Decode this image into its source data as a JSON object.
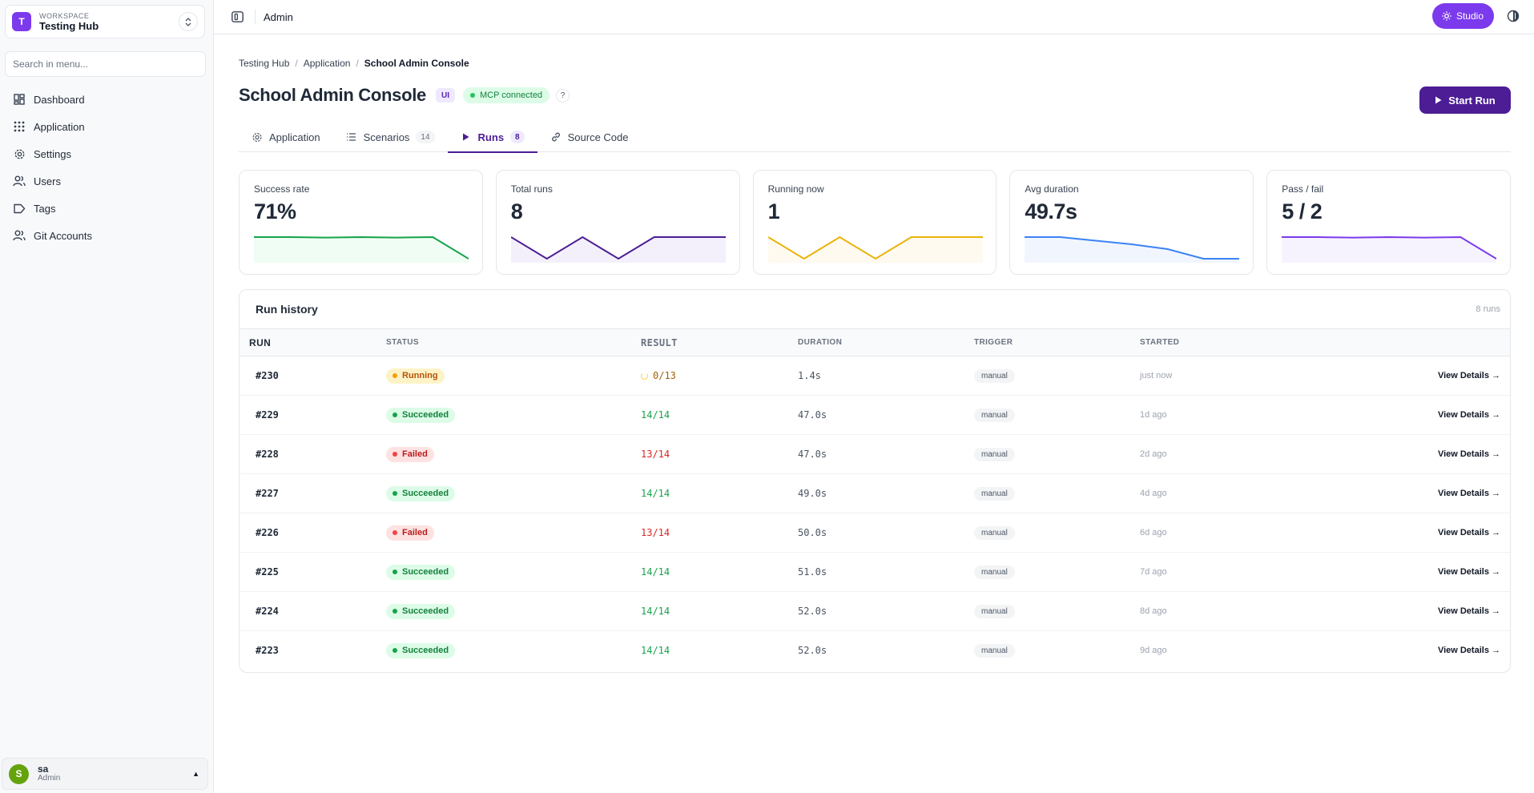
{
  "workspace": {
    "label": "WORKSPACE",
    "name": "Testing Hub",
    "logo_letter": "T",
    "logo_color": "#7c3aed"
  },
  "search": {
    "placeholder": "Search in menu..."
  },
  "nav": {
    "items": [
      {
        "label": "Dashboard",
        "icon": "dashboard-icon"
      },
      {
        "label": "Application",
        "icon": "grid-icon"
      },
      {
        "label": "Settings",
        "icon": "gear-icon"
      },
      {
        "label": "Users",
        "icon": "users-icon"
      },
      {
        "label": "Tags",
        "icon": "tag-icon"
      },
      {
        "label": "Git Accounts",
        "icon": "users-icon"
      }
    ]
  },
  "user": {
    "initial": "S",
    "name": "sa",
    "role": "Admin",
    "avatar_color": "#65a30d"
  },
  "topbar": {
    "title": "Admin",
    "studio_label": "Studio"
  },
  "breadcrumb": [
    "Testing Hub",
    "Application",
    "School Admin Console"
  ],
  "page": {
    "title": "School Admin Console",
    "type_badge": "UI",
    "mcp_status": "MCP connected",
    "help": "?",
    "start_run_label": "Start Run"
  },
  "tabs": [
    {
      "label": "Application",
      "count": null,
      "icon": "gear-icon",
      "active": false
    },
    {
      "label": "Scenarios",
      "count": "14",
      "icon": "list-icon",
      "active": false
    },
    {
      "label": "Runs",
      "count": "8",
      "icon": "play-icon",
      "active": true
    },
    {
      "label": "Source Code",
      "count": null,
      "icon": "link-icon",
      "active": false
    }
  ],
  "stats": [
    {
      "label": "Success rate",
      "value": "71%",
      "color": "#16a34a",
      "fill": "#f0fdf4",
      "spark": [
        1,
        1,
        0.98,
        1,
        0.98,
        1,
        0.1
      ]
    },
    {
      "label": "Total runs",
      "value": "8",
      "color": "#4c1d95",
      "fill": "#f3f0fb",
      "spark": [
        1,
        0.1,
        1,
        0.1,
        1,
        1,
        1
      ]
    },
    {
      "label": "Running now",
      "value": "1",
      "color": "#eab308",
      "fill": "#fffaf0",
      "spark": [
        1,
        0.1,
        1,
        0.1,
        1,
        1,
        1
      ]
    },
    {
      "label": "Avg duration",
      "value": "49.7s",
      "color": "#3b82f6",
      "fill": "#f1f6fe",
      "spark": [
        1,
        1,
        0.85,
        0.7,
        0.5,
        0.1,
        0.1
      ]
    },
    {
      "label": "Pass / fail",
      "value": "5 / 2",
      "color": "#7c3aed",
      "fill": "#f6f3fe",
      "spark": [
        1,
        1,
        0.98,
        1,
        0.98,
        1,
        0.1
      ]
    }
  ],
  "history": {
    "title": "Run history",
    "count": "8 runs",
    "columns": [
      "RUN",
      "STATUS",
      "RESULT",
      "DURATION",
      "TRIGGER",
      "STARTED",
      ""
    ],
    "action_label": "View Details →",
    "rows": [
      {
        "run": "#230",
        "status": "Running",
        "result": "0/13",
        "duration": "1.4s",
        "trigger": "manual",
        "started": "just now"
      },
      {
        "run": "#229",
        "status": "Succeeded",
        "result": "14/14",
        "duration": "47.0s",
        "trigger": "manual",
        "started": "1d ago"
      },
      {
        "run": "#228",
        "status": "Failed",
        "result": "13/14",
        "duration": "47.0s",
        "trigger": "manual",
        "started": "2d ago"
      },
      {
        "run": "#227",
        "status": "Succeeded",
        "result": "14/14",
        "duration": "49.0s",
        "trigger": "manual",
        "started": "4d ago"
      },
      {
        "run": "#226",
        "status": "Failed",
        "result": "13/14",
        "duration": "50.0s",
        "trigger": "manual",
        "started": "6d ago"
      },
      {
        "run": "#225",
        "status": "Succeeded",
        "result": "14/14",
        "duration": "51.0s",
        "trigger": "manual",
        "started": "7d ago"
      },
      {
        "run": "#224",
        "status": "Succeeded",
        "result": "14/14",
        "duration": "52.0s",
        "trigger": "manual",
        "started": "8d ago"
      },
      {
        "run": "#223",
        "status": "Succeeded",
        "result": "14/14",
        "duration": "52.0s",
        "trigger": "manual",
        "started": "9d ago"
      }
    ]
  },
  "status_colors": {
    "Running": {
      "bg": "#fef3c7",
      "fg": "#b45309",
      "dot": "#f59e0b",
      "result": "#a16207"
    },
    "Succeeded": {
      "bg": "#dcfce7",
      "fg": "#15803d",
      "dot": "#16a34a",
      "result": "#16a34a"
    },
    "Failed": {
      "bg": "#fee2e2",
      "fg": "#b91c1c",
      "dot": "#ef4444",
      "result": "#dc2626"
    }
  }
}
